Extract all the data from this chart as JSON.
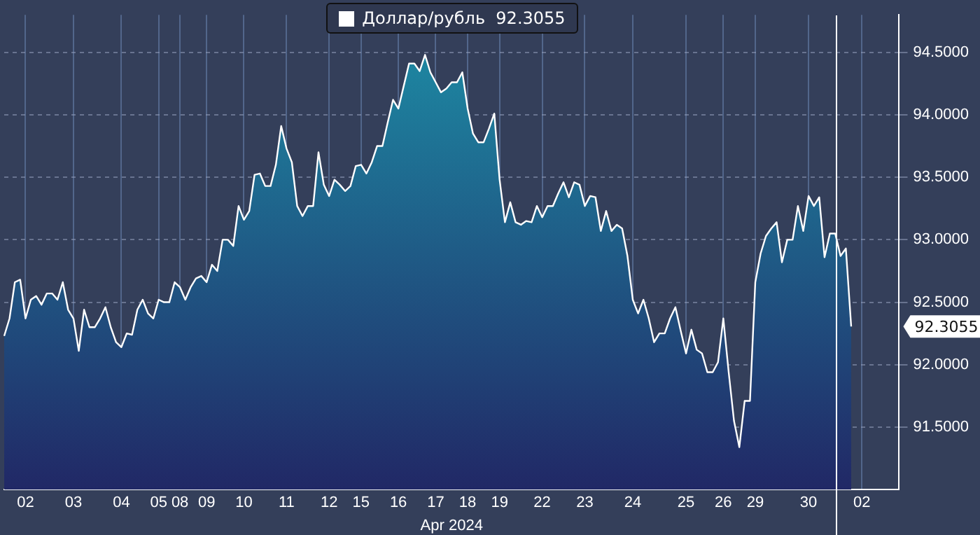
{
  "chart_data": {
    "type": "area",
    "xlabel": "Apr 2024",
    "categories": [
      null,
      null,
      null,
      null,
      "02",
      null,
      null,
      null,
      null,
      null,
      null,
      null,
      null,
      "03",
      null,
      null,
      null,
      null,
      null,
      null,
      null,
      null,
      "04",
      null,
      null,
      null,
      null,
      null,
      null,
      "05",
      null,
      null,
      null,
      "08",
      null,
      null,
      null,
      null,
      "09",
      null,
      null,
      null,
      null,
      null,
      null,
      "10",
      null,
      null,
      null,
      null,
      null,
      null,
      null,
      "11",
      null,
      null,
      null,
      null,
      null,
      null,
      null,
      "12",
      null,
      null,
      null,
      null,
      null,
      "15",
      null,
      null,
      null,
      null,
      null,
      null,
      "16",
      null,
      null,
      null,
      null,
      null,
      null,
      "17",
      null,
      null,
      null,
      null,
      null,
      "18",
      null,
      null,
      null,
      null,
      null,
      "19",
      null,
      null,
      null,
      null,
      null,
      null,
      null,
      "22",
      null,
      null,
      null,
      null,
      null,
      null,
      null,
      "23",
      null,
      null,
      null,
      null,
      null,
      null,
      null,
      null,
      "24",
      null,
      null,
      null,
      null,
      null,
      null,
      null,
      null,
      null,
      "25",
      null,
      null,
      null,
      null,
      null,
      null,
      "26",
      null,
      null,
      null,
      null,
      null,
      "29",
      null,
      null,
      null,
      null,
      null,
      null,
      null,
      null,
      null,
      "30",
      null,
      null,
      null,
      null,
      null,
      null,
      null,
      null,
      null,
      "02",
      null,
      null,
      null,
      null,
      null,
      null,
      null
    ],
    "series": [
      {
        "name": "Доллар/рубль  92.3055",
        "color": "#ffffff",
        "values": [
          92.23,
          92.37,
          92.66,
          92.68,
          92.37,
          92.52,
          92.55,
          92.48,
          92.57,
          92.57,
          92.52,
          92.66,
          92.44,
          92.37,
          92.11,
          92.44,
          92.3,
          92.3,
          92.37,
          92.46,
          92.3,
          92.18,
          92.14,
          92.25,
          92.24,
          92.44,
          92.52,
          92.41,
          92.37,
          92.52,
          92.5,
          92.5,
          92.66,
          92.62,
          92.52,
          92.62,
          92.69,
          92.71,
          92.66,
          92.8,
          92.75,
          93.0,
          93.0,
          92.95,
          93.27,
          93.16,
          93.23,
          93.52,
          93.53,
          93.43,
          93.43,
          93.6,
          93.91,
          93.73,
          93.62,
          93.27,
          93.19,
          93.27,
          93.27,
          93.7,
          93.44,
          93.35,
          93.48,
          93.44,
          93.39,
          93.43,
          93.59,
          93.6,
          93.53,
          93.62,
          93.75,
          93.75,
          93.94,
          94.12,
          94.05,
          94.23,
          94.41,
          94.41,
          94.35,
          94.48,
          94.34,
          94.26,
          94.18,
          94.21,
          94.26,
          94.26,
          94.34,
          94.05,
          93.85,
          93.78,
          93.78,
          93.89,
          94.01,
          93.48,
          93.14,
          93.3,
          93.14,
          93.12,
          93.15,
          93.14,
          93.27,
          93.18,
          93.27,
          93.27,
          93.37,
          93.46,
          93.34,
          93.46,
          93.44,
          93.27,
          93.35,
          93.34,
          93.07,
          93.23,
          93.07,
          93.12,
          93.09,
          92.87,
          92.52,
          92.41,
          92.52,
          92.37,
          92.18,
          92.25,
          92.25,
          92.37,
          92.46,
          92.27,
          92.09,
          92.28,
          92.12,
          92.09,
          91.94,
          91.94,
          92.02,
          92.37,
          91.94,
          91.55,
          91.34,
          91.71,
          91.71,
          92.66,
          92.89,
          93.03,
          93.09,
          93.14,
          92.82,
          93.0,
          93.0,
          93.27,
          93.07,
          93.35,
          93.27,
          93.34,
          92.86,
          93.05,
          93.05,
          92.87,
          92.93,
          92.3055,
          null,
          null,
          null,
          null,
          null,
          null,
          null,
          null,
          null
        ]
      }
    ],
    "ylim": [
      91.0,
      94.8
    ],
    "yticks": [
      {
        "value": 91.5,
        "label": "91.5000"
      },
      {
        "value": 92,
        "label": "92.0000"
      },
      {
        "value": 92.5,
        "label": "92.5000"
      },
      {
        "value": 93,
        "label": "93.0000"
      },
      {
        "value": 93.5,
        "label": "93.5000"
      },
      {
        "value": 94,
        "label": "94.0000"
      },
      {
        "value": 94.5,
        "label": "94.5000"
      }
    ],
    "annotations": [
      "92.3055"
    ],
    "grid": true,
    "legend": "top",
    "marker": "none",
    "line_style": "solid"
  }
}
